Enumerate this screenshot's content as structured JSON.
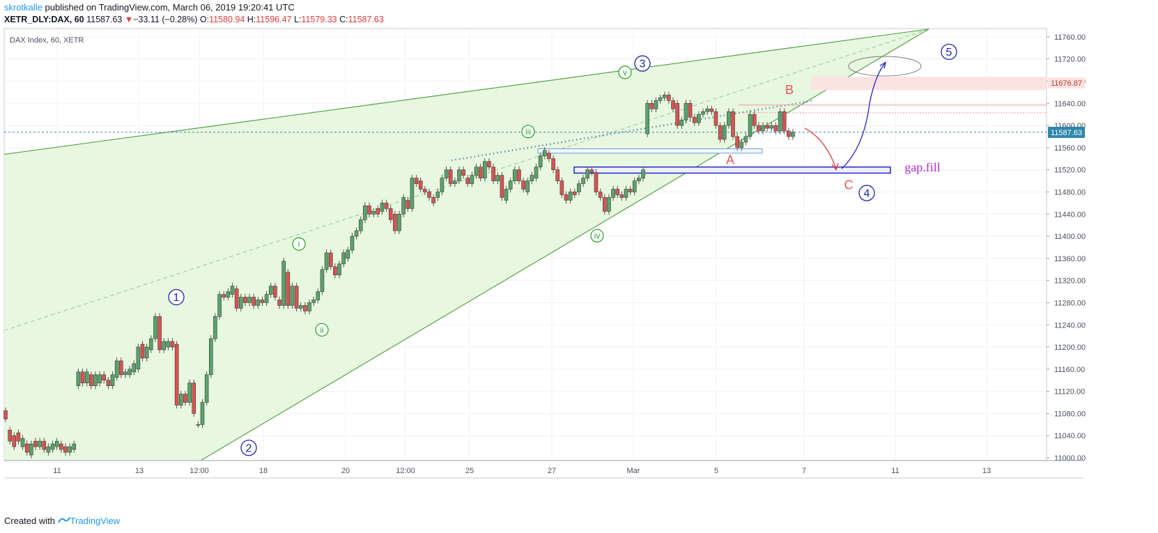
{
  "header": {
    "author": "skrotkalle",
    "published_text": "published on TradingView.com, March 06, 2019 19:20:41 UTC",
    "symbol": "XETR_DLY:DAX, 60",
    "last": "11587.63",
    "change_arrow": "▼",
    "change": "−33.11 (−0.28%)",
    "o_label": "O:",
    "o_value": "11580.94",
    "h_label": "H:",
    "h_value": "11596.47",
    "l_label": "L:",
    "l_value": "11579.33",
    "c_label": "C:",
    "c_value": "11587.63"
  },
  "footer": {
    "created": "Created with",
    "brand": "TradingView"
  },
  "colors": {
    "up_candle": "#5aa36a",
    "down_candle": "#d9534f",
    "wedge_fill": "#e8f7df",
    "trendline": "#55a34b",
    "price_line": "#2e86ab",
    "wave_blue": "#1d26b0",
    "wave_green": "#2ea82e",
    "abc_red": "#e05a5a",
    "gap_text": "#b030d0"
  },
  "chart_data": {
    "type": "candlestick",
    "title": "DAX Index, 60, XETR",
    "x_ticks": [
      "11",
      "13",
      "12:00",
      "18",
      "20",
      "12:00",
      "25",
      "27",
      "Mar",
      "5",
      "7",
      "11",
      "13"
    ],
    "y_ticks": [
      11000,
      11040,
      11080,
      11120,
      11160,
      11200,
      11240,
      11280,
      11320,
      11360,
      11400,
      11440,
      11480,
      11520,
      11560,
      11600,
      11640,
      11680,
      11720,
      11760
    ],
    "ylim": [
      10995,
      11775
    ],
    "last_price": "11587.63",
    "marked_level": "11676.87",
    "grid": true,
    "candles": [
      {
        "o": 11085,
        "c": 11070
      },
      {
        "o": 11050,
        "c": 11030
      },
      {
        "o": 11040,
        "c": 11020
      },
      {
        "o": 11045,
        "c": 11030
      },
      {
        "o": 11020,
        "c": 11035
      },
      {
        "o": 11025,
        "c": 11010
      },
      {
        "o": 11005,
        "c": 11025
      },
      {
        "o": 11030,
        "c": 11020
      },
      {
        "o": 11020,
        "c": 11030
      },
      {
        "o": 11030,
        "c": 11015
      },
      {
        "o": 11010,
        "c": 11020
      },
      {
        "o": 11015,
        "c": 11025
      },
      {
        "o": 11020,
        "c": 11030
      },
      {
        "o": 11025,
        "c": 11015
      },
      {
        "o": 11020,
        "c": 11010
      },
      {
        "o": 11010,
        "c": 11020
      },
      {
        "o": 11015,
        "c": 11025
      },
      {
        "o": 11130,
        "c": 11155
      },
      {
        "o": 11155,
        "c": 11135
      },
      {
        "o": 11135,
        "c": 11155
      },
      {
        "o": 11150,
        "c": 11130
      },
      {
        "o": 11130,
        "c": 11150
      },
      {
        "o": 11135,
        "c": 11150
      },
      {
        "o": 11150,
        "c": 11140
      },
      {
        "o": 11140,
        "c": 11130
      },
      {
        "o": 11130,
        "c": 11150
      },
      {
        "o": 11145,
        "c": 11175
      },
      {
        "o": 11175,
        "c": 11150
      },
      {
        "o": 11150,
        "c": 11155
      },
      {
        "o": 11150,
        "c": 11160
      },
      {
        "o": 11155,
        "c": 11170
      },
      {
        "o": 11160,
        "c": 11200
      },
      {
        "o": 11205,
        "c": 11180
      },
      {
        "o": 11180,
        "c": 11200
      },
      {
        "o": 11195,
        "c": 11215
      },
      {
        "o": 11215,
        "c": 11255
      },
      {
        "o": 11255,
        "c": 11195
      },
      {
        "o": 11195,
        "c": 11210
      },
      {
        "o": 11200,
        "c": 11210
      },
      {
        "o": 11210,
        "c": 11200
      },
      {
        "o": 11205,
        "c": 11095
      },
      {
        "o": 11095,
        "c": 11115
      },
      {
        "o": 11115,
        "c": 11100
      },
      {
        "o": 11100,
        "c": 11135
      },
      {
        "o": 11135,
        "c": 11080
      },
      {
        "o": 11060,
        "c": 11060
      },
      {
        "o": 11060,
        "c": 11100
      },
      {
        "o": 11100,
        "c": 11150
      },
      {
        "o": 11150,
        "c": 11215
      },
      {
        "o": 11215,
        "c": 11255
      },
      {
        "o": 11255,
        "c": 11295
      },
      {
        "o": 11295,
        "c": 11290
      },
      {
        "o": 11290,
        "c": 11300
      },
      {
        "o": 11295,
        "c": 11310
      },
      {
        "o": 11305,
        "c": 11270
      },
      {
        "o": 11270,
        "c": 11290
      },
      {
        "o": 11290,
        "c": 11280
      },
      {
        "o": 11280,
        "c": 11290
      },
      {
        "o": 11290,
        "c": 11275
      },
      {
        "o": 11275,
        "c": 11285
      },
      {
        "o": 11285,
        "c": 11280
      },
      {
        "o": 11280,
        "c": 11295
      },
      {
        "o": 11295,
        "c": 11310
      },
      {
        "o": 11310,
        "c": 11290
      },
      {
        "o": 11285,
        "c": 11275
      },
      {
        "o": 11275,
        "c": 11355
      },
      {
        "o": 11335,
        "c": 11275
      },
      {
        "o": 11275,
        "c": 11310
      },
      {
        "o": 11310,
        "c": 11270
      },
      {
        "o": 11270,
        "c": 11275
      },
      {
        "o": 11275,
        "c": 11265
      },
      {
        "o": 11265,
        "c": 11280
      },
      {
        "o": 11280,
        "c": 11285
      },
      {
        "o": 11285,
        "c": 11300
      },
      {
        "o": 11300,
        "c": 11340
      },
      {
        "o": 11340,
        "c": 11370
      },
      {
        "o": 11370,
        "c": 11345
      },
      {
        "o": 11345,
        "c": 11330
      },
      {
        "o": 11330,
        "c": 11350
      },
      {
        "o": 11350,
        "c": 11370
      },
      {
        "o": 11360,
        "c": 11375
      },
      {
        "o": 11375,
        "c": 11400
      },
      {
        "o": 11400,
        "c": 11410
      },
      {
        "o": 11410,
        "c": 11430
      },
      {
        "o": 11430,
        "c": 11455
      },
      {
        "o": 11455,
        "c": 11440
      },
      {
        "o": 11440,
        "c": 11445
      },
      {
        "o": 11450,
        "c": 11440
      },
      {
        "o": 11445,
        "c": 11460
      },
      {
        "o": 11460,
        "c": 11450
      },
      {
        "o": 11450,
        "c": 11430
      },
      {
        "o": 11440,
        "c": 11410
      },
      {
        "o": 11410,
        "c": 11440
      },
      {
        "o": 11440,
        "c": 11470
      },
      {
        "o": 11465,
        "c": 11450
      },
      {
        "o": 11450,
        "c": 11505
      },
      {
        "o": 11505,
        "c": 11495
      },
      {
        "o": 11500,
        "c": 11485
      },
      {
        "o": 11485,
        "c": 11480
      },
      {
        "o": 11480,
        "c": 11470
      },
      {
        "o": 11470,
        "c": 11460
      },
      {
        "o": 11470,
        "c": 11480
      },
      {
        "o": 11480,
        "c": 11505
      },
      {
        "o": 11505,
        "c": 11520
      },
      {
        "o": 11520,
        "c": 11495
      },
      {
        "o": 11495,
        "c": 11500
      },
      {
        "o": 11500,
        "c": 11520
      },
      {
        "o": 11520,
        "c": 11510
      },
      {
        "o": 11505,
        "c": 11495
      },
      {
        "o": 11495,
        "c": 11510
      },
      {
        "o": 11510,
        "c": 11525
      },
      {
        "o": 11525,
        "c": 11505
      },
      {
        "o": 11505,
        "c": 11535
      },
      {
        "o": 11535,
        "c": 11525
      },
      {
        "o": 11525,
        "c": 11500
      },
      {
        "o": 11500,
        "c": 11510
      },
      {
        "o": 11510,
        "c": 11470
      },
      {
        "o": 11465,
        "c": 11485
      },
      {
        "o": 11485,
        "c": 11500
      },
      {
        "o": 11500,
        "c": 11520
      },
      {
        "o": 11520,
        "c": 11500
      },
      {
        "o": 11500,
        "c": 11485
      },
      {
        "o": 11480,
        "c": 11500
      },
      {
        "o": 11500,
        "c": 11510
      },
      {
        "o": 11505,
        "c": 11525
      },
      {
        "o": 11525,
        "c": 11545
      },
      {
        "o": 11545,
        "c": 11555
      },
      {
        "o": 11550,
        "c": 11540
      },
      {
        "o": 11540,
        "c": 11520
      },
      {
        "o": 11520,
        "c": 11500
      },
      {
        "o": 11500,
        "c": 11475
      },
      {
        "o": 11475,
        "c": 11465
      },
      {
        "o": 11465,
        "c": 11480
      },
      {
        "o": 11480,
        "c": 11475
      },
      {
        "o": 11480,
        "c": 11495
      },
      {
        "o": 11495,
        "c": 11505
      },
      {
        "o": 11505,
        "c": 11520
      },
      {
        "o": 11520,
        "c": 11515
      },
      {
        "o": 11515,
        "c": 11480
      },
      {
        "o": 11480,
        "c": 11470
      },
      {
        "o": 11470,
        "c": 11445
      },
      {
        "o": 11445,
        "c": 11470
      },
      {
        "o": 11470,
        "c": 11485
      },
      {
        "o": 11485,
        "c": 11475
      },
      {
        "o": 11475,
        "c": 11470
      },
      {
        "o": 11470,
        "c": 11485
      },
      {
        "o": 11485,
        "c": 11480
      },
      {
        "o": 11480,
        "c": 11500
      },
      {
        "o": 11500,
        "c": 11505
      },
      {
        "o": 11505,
        "c": 11520
      },
      {
        "o": 11585,
        "c": 11640
      },
      {
        "o": 11640,
        "c": 11630
      },
      {
        "o": 11630,
        "c": 11645
      },
      {
        "o": 11645,
        "c": 11650
      },
      {
        "o": 11650,
        "c": 11655
      },
      {
        "o": 11655,
        "c": 11645
      },
      {
        "o": 11645,
        "c": 11630
      },
      {
        "o": 11640,
        "c": 11600
      },
      {
        "o": 11600,
        "c": 11610
      },
      {
        "o": 11610,
        "c": 11640
      },
      {
        "o": 11640,
        "c": 11615
      },
      {
        "o": 11615,
        "c": 11605
      },
      {
        "o": 11605,
        "c": 11620
      },
      {
        "o": 11620,
        "c": 11625
      },
      {
        "o": 11625,
        "c": 11630
      },
      {
        "o": 11630,
        "c": 11625
      },
      {
        "o": 11625,
        "c": 11600
      },
      {
        "o": 11600,
        "c": 11575
      },
      {
        "o": 11575,
        "c": 11600
      },
      {
        "o": 11600,
        "c": 11625
      },
      {
        "o": 11625,
        "c": 11580
      },
      {
        "o": 11580,
        "c": 11560
      },
      {
        "o": 11560,
        "c": 11570
      },
      {
        "o": 11570,
        "c": 11580
      },
      {
        "o": 11580,
        "c": 11620
      },
      {
        "o": 11620,
        "c": 11600
      },
      {
        "o": 11600,
        "c": 11590
      },
      {
        "o": 11590,
        "c": 11600
      },
      {
        "o": 11600,
        "c": 11595
      },
      {
        "o": 11595,
        "c": 11600
      },
      {
        "o": 11600,
        "c": 11590
      },
      {
        "o": 11590,
        "c": 11625
      },
      {
        "o": 11625,
        "c": 11590
      },
      {
        "o": 11590,
        "c": 11580
      },
      {
        "o": 11580,
        "c": 11588
      }
    ],
    "annotations": {
      "blue_waves": [
        "1",
        "2",
        "3",
        "4",
        "5"
      ],
      "green_waves": [
        "i",
        "ii",
        "iii",
        "iv",
        "v"
      ],
      "abc": [
        "A",
        "B",
        "C"
      ],
      "gap_label": "gap.fill"
    }
  }
}
